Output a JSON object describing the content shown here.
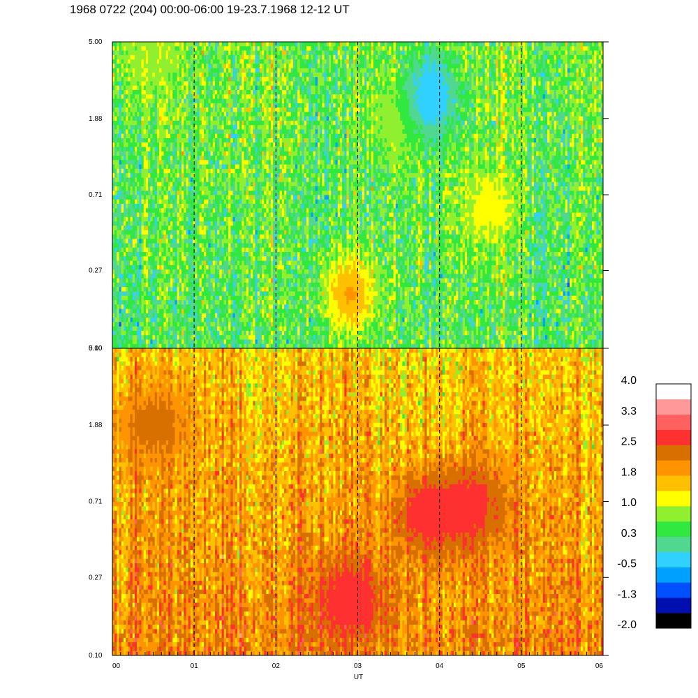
{
  "title": "1968 0722 (204) 00:00-06:00 19-23.7.1968  12-12 UT",
  "colors": {
    "frame": "#000000",
    "background": "#ffffff"
  },
  "chart_data": [
    {
      "type": "heatmap",
      "panel": "upper",
      "x": [
        "00",
        "01",
        "02",
        "03",
        "04",
        "05",
        "06"
      ],
      "y_ticks": [
        "0.10",
        "0.27",
        "0.71",
        "1.88",
        "5.00"
      ],
      "y_scale": "log",
      "ylim": [
        0.1,
        5.0
      ],
      "xlim": [
        0,
        6
      ],
      "xlabel": "",
      "ylabel": "",
      "dominant_level_range": [
        0.3,
        1.0
      ],
      "features": [
        {
          "x": 0.5,
          "y": 4.2,
          "value": 1.0
        },
        {
          "x": 3.5,
          "y": 1.88,
          "value": 1.0
        },
        {
          "x": 2.9,
          "y": 0.2,
          "value": 1.8
        },
        {
          "x": 4.6,
          "y": 0.6,
          "value": 1.2
        },
        {
          "x": 3.9,
          "y": 2.5,
          "value": -0.5
        }
      ]
    },
    {
      "type": "heatmap",
      "panel": "lower",
      "x": [
        "00",
        "01",
        "02",
        "03",
        "04",
        "05",
        "06"
      ],
      "y_ticks": [
        "0.10",
        "0.27",
        "0.71",
        "1.88",
        "5.00"
      ],
      "y_scale": "log",
      "ylim": [
        0.1,
        5.0
      ],
      "xlim": [
        0,
        6
      ],
      "xlabel": "UT",
      "ylabel": "",
      "dominant_level_range": [
        1.0,
        2.5
      ],
      "features": [
        {
          "x": 0.5,
          "y": 1.88,
          "value": 2.3
        },
        {
          "x": 2.9,
          "y": 0.2,
          "value": 2.8
        },
        {
          "x": 4.4,
          "y": 0.7,
          "value": 2.6
        },
        {
          "x": 3.9,
          "y": 0.6,
          "value": 2.8
        }
      ]
    }
  ],
  "colorbar": {
    "tick_labels": [
      "4.0",
      "3.3",
      "2.5",
      "1.8",
      "1.0",
      "0.3",
      "-0.5",
      "-1.3",
      "-2.0"
    ],
    "range": [
      -2.0,
      4.0
    ],
    "colors": [
      "#000000",
      "#0010b0",
      "#0050ff",
      "#00a0ff",
      "#30d0ff",
      "#50d890",
      "#30e840",
      "#90f030",
      "#ffff00",
      "#ffc000",
      "#ff9400",
      "#d87000",
      "#ff3030",
      "#ff6060",
      "#ff9898",
      "#ffffff"
    ]
  }
}
